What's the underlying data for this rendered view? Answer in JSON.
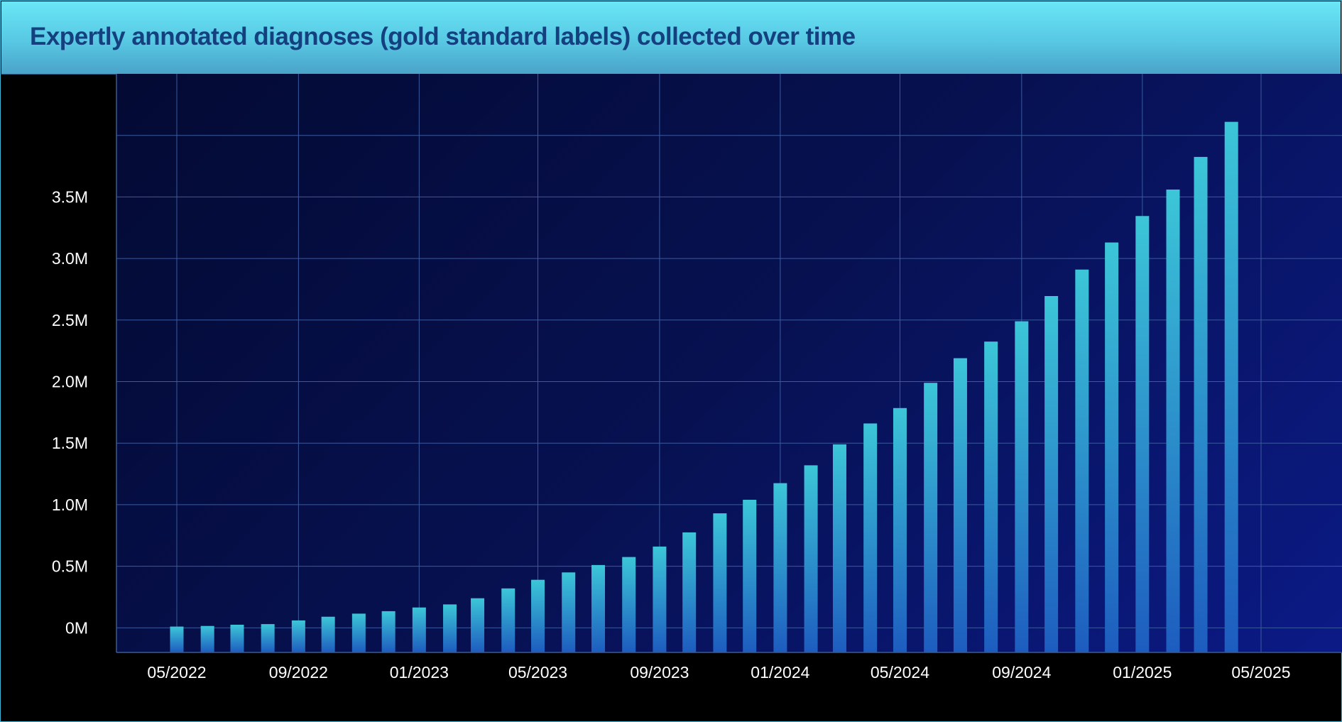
{
  "chart_data": {
    "type": "bar",
    "title": "Expertly annotated diagnoses (gold standard labels) collected over time",
    "xlabel": "",
    "ylabel": "",
    "x_axis": "date",
    "xlim": [
      "2022-03-01",
      "2025-05-01"
    ],
    "ylim": [
      -200000,
      4500000
    ],
    "yticks": [
      0,
      500000,
      1000000,
      1500000,
      2000000,
      2500000,
      3000000,
      3500000
    ],
    "ytick_labels": [
      "0M",
      "0.5M",
      "1.0M",
      "1.5M",
      "2.0M",
      "2.5M",
      "3.0M",
      "3.5M"
    ],
    "xtick_dates": [
      "2022-05-01",
      "2022-09-01",
      "2023-01-01",
      "2023-05-01",
      "2023-09-01",
      "2024-01-01",
      "2024-05-01",
      "2024-09-01",
      "2025-01-01",
      "2025-05-01"
    ],
    "xtick_labels": [
      "05/2022",
      "09/2022",
      "01/2023",
      "05/2023",
      "09/2023",
      "01/2024",
      "05/2024",
      "09/2024",
      "01/2025",
      "05/2025"
    ],
    "grid": true,
    "colors": {
      "bar_top": "#3cc6d8",
      "bar_bottom": "#1d5cbf",
      "grid": "#3b5a9e",
      "title": "#15407f"
    },
    "dates": [
      "2022-05-01",
      "2022-06-01",
      "2022-07-01",
      "2022-08-01",
      "2022-09-01",
      "2022-10-01",
      "2022-11-01",
      "2022-12-01",
      "2023-01-01",
      "2023-02-01",
      "2023-03-01",
      "2023-04-01",
      "2023-05-01",
      "2023-06-01",
      "2023-07-01",
      "2023-08-01",
      "2023-09-01",
      "2023-10-01",
      "2023-11-01",
      "2023-12-01",
      "2024-01-01",
      "2024-02-01",
      "2024-03-01",
      "2024-04-01",
      "2024-05-01",
      "2024-06-01",
      "2024-07-01",
      "2024-08-01",
      "2024-09-01",
      "2024-10-01",
      "2024-11-01",
      "2024-12-01",
      "2025-01-01",
      "2025-02-01",
      "2025-03-01",
      "2025-04-01"
    ],
    "values": [
      10000,
      15000,
      25000,
      30000,
      60000,
      90000,
      115000,
      135000,
      165000,
      190000,
      240000,
      320000,
      390000,
      450000,
      510000,
      575000,
      660000,
      775000,
      930000,
      1040000,
      1175000,
      1320000,
      1490000,
      1660000,
      1785000,
      1990000,
      2190000,
      2325000,
      2490000,
      2695000,
      2910000,
      3130000,
      3345000,
      3560000,
      3825000,
      4110000
    ]
  }
}
